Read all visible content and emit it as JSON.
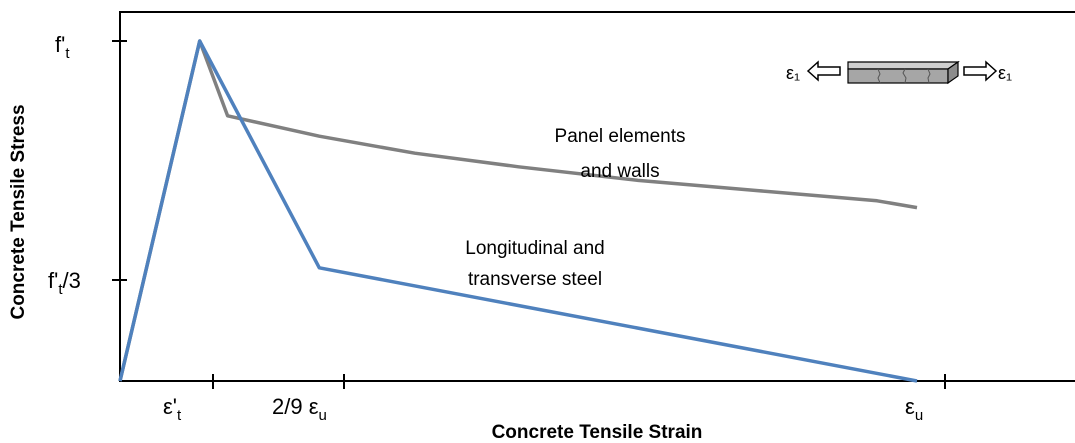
{
  "chart_data": {
    "type": "line",
    "xlabel": "Concrete Tensile Strain",
    "ylabel": "Concrete Tensile Stress",
    "x_ticks": [
      {
        "label": "ε'",
        "sub": "t"
      },
      {
        "label": "2/9 ε",
        "sub": "u"
      },
      {
        "label": "ε",
        "sub": "u"
      }
    ],
    "y_ticks": [
      {
        "label": "f'",
        "sub": "t",
        "suffix": ""
      },
      {
        "label": "f'",
        "sub": "t",
        "suffix": "/3"
      }
    ],
    "series": [
      {
        "name": "Panel elements and walls",
        "color": "#808080",
        "points": [
          [
            0,
            0
          ],
          [
            0.1,
            1.0
          ],
          [
            0.135,
            0.78
          ],
          [
            0.25,
            0.72
          ],
          [
            0.37,
            0.67
          ],
          [
            0.5,
            0.63
          ],
          [
            0.65,
            0.59
          ],
          [
            0.8,
            0.56
          ],
          [
            0.95,
            0.53
          ],
          [
            1.0,
            0.51
          ]
        ]
      },
      {
        "name": "Longitudinal and transverse steel",
        "color": "#4f81bd",
        "points": [
          [
            0,
            0
          ],
          [
            0.1,
            1.0
          ],
          [
            0.25,
            0.333
          ],
          [
            1.0,
            0
          ]
        ]
      }
    ],
    "annotations": {
      "panel": [
        "Panel elements",
        "and walls"
      ],
      "steel": [
        "Longitudinal and",
        "transverse steel"
      ]
    },
    "inset_labels": [
      "ε₁",
      "ε₁"
    ],
    "grid": false,
    "legend": "none"
  }
}
